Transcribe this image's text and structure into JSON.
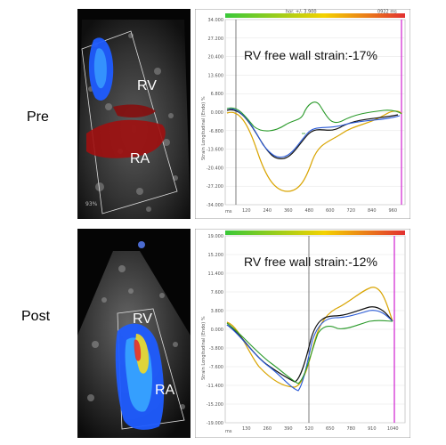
{
  "rows": [
    {
      "label": "Pre",
      "echo": {
        "labels": [
          "RV",
          "RA"
        ],
        "corner_text": "93%"
      },
      "strain": {
        "title": "RV free wall strain:-17%",
        "header_left": "hor. +/- 3.900",
        "header_right": "0922 ms",
        "y_axis_label": "Strain Longitudinal (Endo) %",
        "x_unit": "ms",
        "y_ticks": [
          "34.000",
          "27.200",
          "20.400",
          "13.600",
          "6.800",
          "0.000",
          "-6.800",
          "-13.600",
          "-20.400",
          "-27.200",
          "-34.000"
        ],
        "x_ticks": [
          "120",
          "240",
          "360",
          "480",
          "600",
          "720",
          "840",
          "960"
        ]
      }
    },
    {
      "label": "Post",
      "echo": {
        "labels": [
          "RV",
          "RA"
        ]
      },
      "strain": {
        "title": "RV free wall strain:-12%",
        "y_axis_label": "Strain Longitudinal (Endo) %",
        "x_unit": "ms",
        "y_ticks": [
          "19.000",
          "15.200",
          "11.400",
          "7.600",
          "3.800",
          "0.000",
          "-3.800",
          "-7.600",
          "-11.400",
          "-15.200",
          "-19.000"
        ],
        "x_ticks": [
          "130",
          "260",
          "390",
          "520",
          "650",
          "780",
          "910",
          "1040"
        ]
      }
    }
  ]
}
